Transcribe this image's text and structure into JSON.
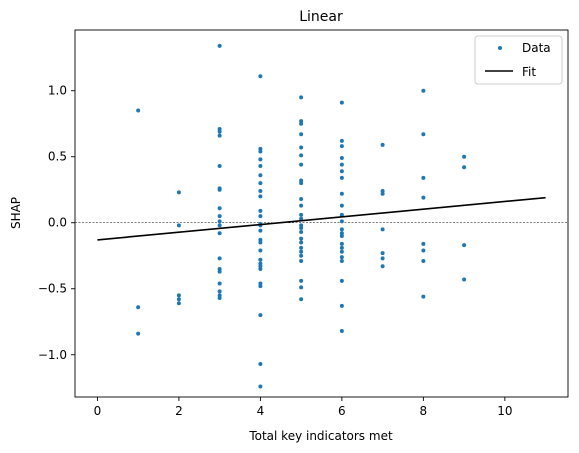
{
  "chart_data": {
    "type": "scatter",
    "title": "Linear",
    "xlabel": "Total key indicators met",
    "ylabel": "SHAP",
    "xlim": [
      -0.55,
      11.55
    ],
    "ylim": [
      -1.32,
      1.46
    ],
    "xticks": [
      0,
      2,
      4,
      6,
      8,
      10
    ],
    "xtick_labels": [
      "0",
      "2",
      "4",
      "6",
      "8",
      "10"
    ],
    "yticks": [
      -1.0,
      -0.5,
      0.0,
      0.5,
      1.0
    ],
    "ytick_labels": [
      "−1.0",
      "−0.5",
      "0.0",
      "0.5",
      "1.0"
    ],
    "grid": false,
    "legend_position": "top-right",
    "colors": {
      "data": "#1f77b4",
      "fit": "#000000",
      "zero_line": "#000000"
    },
    "series": [
      {
        "name": "Data",
        "kind": "scatter",
        "points": [
          [
            1,
            0.85
          ],
          [
            1,
            -0.64
          ],
          [
            1,
            -0.84
          ],
          [
            2,
            0.23
          ],
          [
            2,
            -0.02
          ],
          [
            2,
            -0.55
          ],
          [
            2,
            -0.58
          ],
          [
            2,
            -0.61
          ],
          [
            3,
            1.34
          ],
          [
            3,
            0.71
          ],
          [
            3,
            0.69
          ],
          [
            3,
            0.66
          ],
          [
            3,
            0.43
          ],
          [
            3,
            0.26
          ],
          [
            3,
            0.25
          ],
          [
            3,
            0.11
          ],
          [
            3,
            0.05
          ],
          [
            3,
            0.01
          ],
          [
            3,
            -0.02
          ],
          [
            3,
            -0.08
          ],
          [
            3,
            -0.27
          ],
          [
            3,
            -0.35
          ],
          [
            3,
            -0.37
          ],
          [
            3,
            -0.46
          ],
          [
            3,
            -0.52
          ],
          [
            3,
            -0.55
          ],
          [
            3,
            -0.57
          ],
          [
            4,
            1.11
          ],
          [
            4,
            0.56
          ],
          [
            4,
            0.54
          ],
          [
            4,
            0.48
          ],
          [
            4,
            0.43
          ],
          [
            4,
            0.36
          ],
          [
            4,
            0.3
          ],
          [
            4,
            0.24
          ],
          [
            4,
            0.2
          ],
          [
            4,
            0.09
          ],
          [
            4,
            0.05
          ],
          [
            4,
            -0.01
          ],
          [
            4,
            -0.02
          ],
          [
            4,
            -0.06
          ],
          [
            4,
            -0.13
          ],
          [
            4,
            -0.15
          ],
          [
            4,
            -0.21
          ],
          [
            4,
            -0.28
          ],
          [
            4,
            -0.31
          ],
          [
            4,
            -0.33
          ],
          [
            4,
            -0.35
          ],
          [
            4,
            -0.46
          ],
          [
            4,
            -0.48
          ],
          [
            4,
            -0.7
          ],
          [
            4,
            -1.07
          ],
          [
            4,
            -1.24
          ],
          [
            5,
            0.95
          ],
          [
            5,
            0.77
          ],
          [
            5,
            0.75
          ],
          [
            5,
            0.67
          ],
          [
            5,
            0.57
          ],
          [
            5,
            0.51
          ],
          [
            5,
            0.44
          ],
          [
            5,
            0.32
          ],
          [
            5,
            0.3
          ],
          [
            5,
            0.18
          ],
          [
            5,
            0.13
          ],
          [
            5,
            0.06
          ],
          [
            5,
            0.03
          ],
          [
            5,
            -0.02
          ],
          [
            5,
            -0.04
          ],
          [
            5,
            -0.07
          ],
          [
            5,
            -0.12
          ],
          [
            5,
            -0.15
          ],
          [
            5,
            -0.19
          ],
          [
            5,
            -0.22
          ],
          [
            5,
            -0.25
          ],
          [
            5,
            -0.29
          ],
          [
            5,
            -0.44
          ],
          [
            5,
            -0.49
          ],
          [
            5,
            -0.58
          ],
          [
            6,
            0.91
          ],
          [
            6,
            0.62
          ],
          [
            6,
            0.58
          ],
          [
            6,
            0.49
          ],
          [
            6,
            0.44
          ],
          [
            6,
            0.39
          ],
          [
            6,
            0.34
          ],
          [
            6,
            0.22
          ],
          [
            6,
            0.13
          ],
          [
            6,
            0.06
          ],
          [
            6,
            0.01
          ],
          [
            6,
            -0.05
          ],
          [
            6,
            -0.08
          ],
          [
            6,
            -0.1
          ],
          [
            6,
            -0.16
          ],
          [
            6,
            -0.19
          ],
          [
            6,
            -0.22
          ],
          [
            6,
            -0.26
          ],
          [
            6,
            -0.29
          ],
          [
            6,
            -0.44
          ],
          [
            6,
            -0.63
          ],
          [
            6,
            -0.82
          ],
          [
            7,
            0.59
          ],
          [
            7,
            0.24
          ],
          [
            7,
            0.22
          ],
          [
            7,
            -0.05
          ],
          [
            7,
            -0.23
          ],
          [
            7,
            -0.27
          ],
          [
            7,
            -0.33
          ],
          [
            8,
            1.0
          ],
          [
            8,
            0.67
          ],
          [
            8,
            0.34
          ],
          [
            8,
            0.19
          ],
          [
            8,
            -0.16
          ],
          [
            8,
            -0.21
          ],
          [
            8,
            -0.29
          ],
          [
            8,
            -0.56
          ],
          [
            9,
            0.5
          ],
          [
            9,
            0.42
          ],
          [
            9,
            -0.17
          ],
          [
            9,
            -0.43
          ]
        ]
      },
      {
        "name": "Fit",
        "kind": "line",
        "x": [
          0,
          11
        ],
        "y": [
          -0.13,
          0.19
        ]
      }
    ],
    "reference_line": {
      "y": 0,
      "style": "dashed"
    }
  }
}
